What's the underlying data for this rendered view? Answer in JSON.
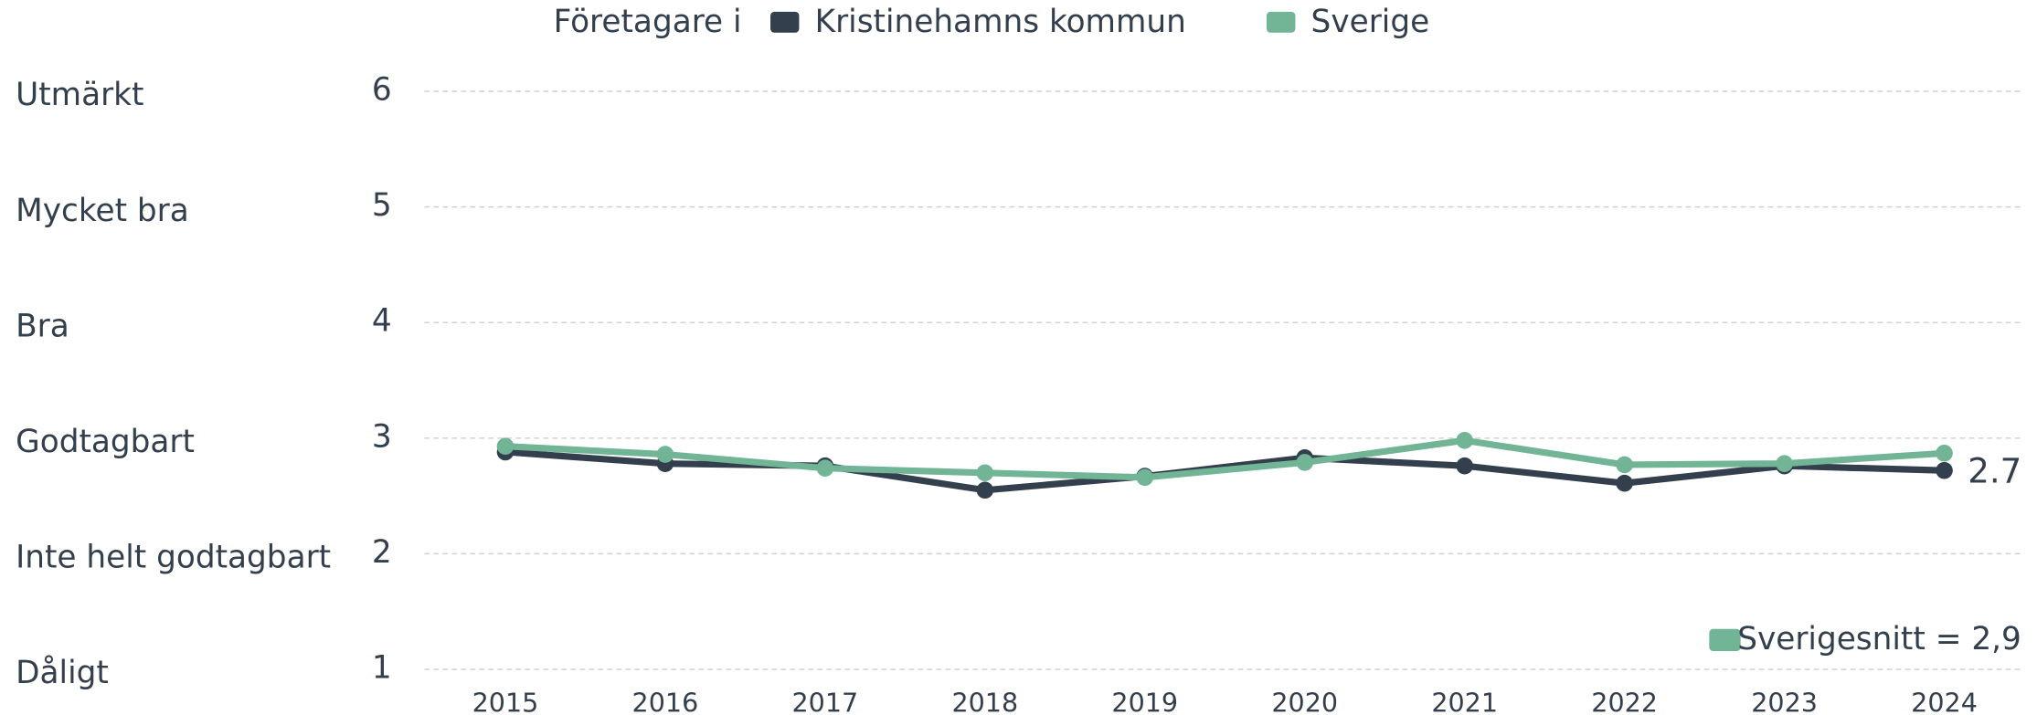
{
  "chart_data": {
    "type": "line",
    "legend_title": "Företagare i",
    "categories": [
      "2015",
      "2016",
      "2017",
      "2018",
      "2019",
      "2020",
      "2021",
      "2022",
      "2023",
      "2024"
    ],
    "series": [
      {
        "name": "Kristinehamns kommun",
        "color": "#333f4c",
        "values": [
          2.88,
          2.78,
          2.76,
          2.55,
          2.67,
          2.83,
          2.76,
          2.61,
          2.76,
          2.72
        ],
        "value_labels": [
          null,
          null,
          null,
          null,
          null,
          null,
          null,
          null,
          null,
          "2.7"
        ]
      },
      {
        "name": "Sverige",
        "color": "#72b496",
        "values": [
          2.93,
          2.86,
          2.74,
          2.7,
          2.66,
          2.79,
          2.98,
          2.77,
          2.78,
          2.87
        ]
      }
    ],
    "ylim": [
      1,
      6
    ],
    "yticks": [
      1,
      2,
      3,
      4,
      5,
      6
    ],
    "ytick_descriptions": [
      "Dåligt",
      "Inte helt godtagbart",
      "Godtagbart",
      "Bra",
      "Mycket bra",
      "Utmärkt"
    ],
    "grid": true,
    "annotation": {
      "text": "Sverigesnitt = 2,9",
      "color": "#72b496"
    }
  }
}
